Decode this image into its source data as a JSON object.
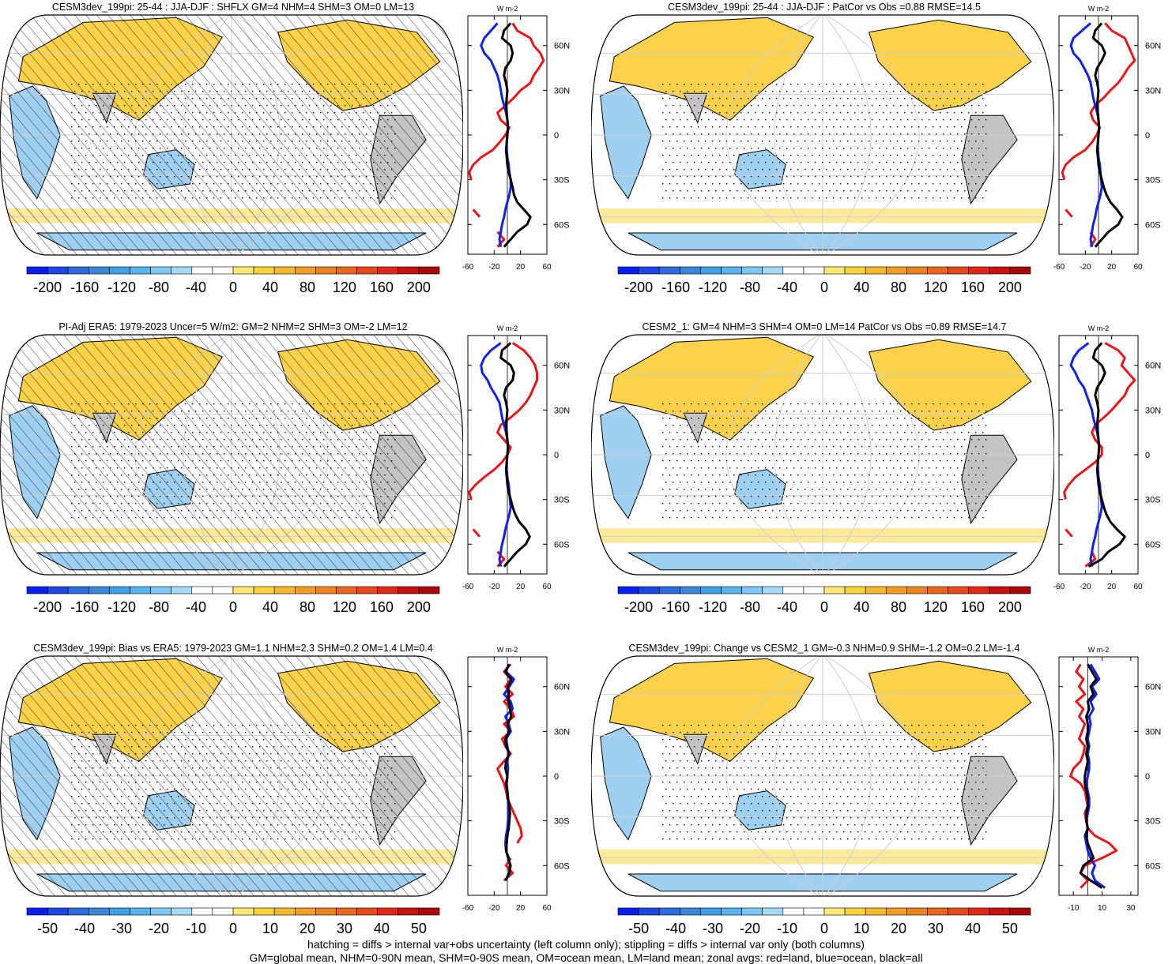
{
  "chart_data": [
    {
      "type": "map",
      "title": "CESM3dev_199pi: 25-44 : JJA-DJF : SHFLX GM=4 NHM=4 SHM=3 OM=0 LM=13",
      "colorbar_labels": [
        "-200",
        "-160",
        "-120",
        "-80",
        "-40",
        "0",
        "40",
        "80",
        "120",
        "160",
        "200"
      ],
      "colorbar_range": [
        -200,
        200
      ],
      "hatching": true,
      "profile": {
        "units": "W m-2",
        "x_ticks": [
          -60,
          -20,
          20,
          60
        ],
        "x_range": [
          -60,
          60
        ],
        "y_labels": [
          "60N",
          "30N",
          "0",
          "30S",
          "60S"
        ],
        "y_values": [
          60,
          30,
          0,
          -30,
          -60
        ],
        "lat": [
          75,
          70,
          65,
          60,
          55,
          50,
          45,
          40,
          35,
          30,
          25,
          20,
          15,
          10,
          5,
          0,
          -5,
          -10,
          -15,
          -20,
          -25,
          -30,
          -35,
          -40,
          -45,
          -50,
          -55,
          -60,
          -65,
          -70,
          -75
        ],
        "land": [
          8,
          15,
          35,
          40,
          50,
          55,
          48,
          40,
          35,
          20,
          10,
          -2,
          -15,
          -10,
          3,
          -3,
          -12,
          -22,
          -40,
          -52,
          -58,
          -55,
          null,
          null,
          null,
          -52,
          -42,
          null,
          -15,
          -5,
          -15
        ],
        "ocean": [
          -15,
          -25,
          -35,
          -40,
          -35,
          -25,
          -20,
          -15,
          -12,
          -10,
          -8,
          -5,
          -2,
          0,
          1,
          0,
          -1,
          -1,
          0,
          2,
          3,
          5,
          5,
          3,
          0,
          -3,
          -5,
          -8,
          -10,
          -12,
          -10
        ],
        "all": [
          5,
          -5,
          -8,
          5,
          8,
          5,
          -3,
          -5,
          -2,
          0,
          -1,
          -2,
          -1,
          0,
          1,
          0,
          -1,
          -2,
          -1,
          0,
          2,
          5,
          8,
          10,
          15,
          25,
          35,
          30,
          15,
          5,
          -5
        ]
      }
    },
    {
      "type": "map",
      "title": "CESM3dev_199pi: 25-44 : JJA-DJF : PatCor vs Obs =0.88 RMSE=14.5",
      "colorbar_labels": [
        "-200",
        "-160",
        "-120",
        "-80",
        "-40",
        "0",
        "40",
        "80",
        "120",
        "160",
        "200"
      ],
      "colorbar_range": [
        -200,
        200
      ],
      "hatching": false,
      "profile": {
        "units": "W m-2",
        "x_ticks": [
          -60,
          -20,
          20,
          60
        ],
        "x_range": [
          -60,
          60
        ],
        "y_labels": [
          "60N",
          "30N",
          "0",
          "30S",
          "60S"
        ],
        "y_values": [
          60,
          30,
          0,
          -30,
          -60
        ],
        "lat": [
          75,
          70,
          65,
          60,
          55,
          50,
          45,
          40,
          35,
          30,
          25,
          20,
          15,
          10,
          5,
          0,
          -5,
          -10,
          -15,
          -20,
          -25,
          -30,
          -35,
          -40,
          -45,
          -50,
          -55,
          -60,
          -65,
          -70,
          -75
        ],
        "land": [
          10,
          20,
          40,
          45,
          50,
          55,
          45,
          38,
          30,
          18,
          8,
          -5,
          -12,
          -8,
          2,
          -3,
          -10,
          -20,
          -38,
          -50,
          -55,
          -52,
          null,
          null,
          null,
          -50,
          -40,
          null,
          -12,
          -5,
          -12
        ],
        "ocean": [
          -12,
          -25,
          -38,
          -42,
          -38,
          -28,
          -22,
          -16,
          -12,
          -10,
          -8,
          -5,
          -2,
          0,
          1,
          0,
          -1,
          -1,
          0,
          2,
          3,
          4,
          5,
          3,
          0,
          -3,
          -5,
          -8,
          -10,
          -12,
          -10
        ],
        "all": [
          5,
          -5,
          -8,
          5,
          10,
          5,
          -2,
          -5,
          -2,
          0,
          -1,
          -2,
          -1,
          0,
          1,
          0,
          -1,
          -2,
          -1,
          0,
          2,
          5,
          8,
          12,
          18,
          28,
          36,
          30,
          15,
          5,
          -5
        ]
      }
    },
    {
      "type": "map",
      "title": "PI-Adj ERA5: 1979-2023 Uncer=5 W/m2: GM=2 NHM=2 SHM=3 OM=-2 LM=12",
      "colorbar_labels": [
        "-200",
        "-160",
        "-120",
        "-80",
        "-40",
        "0",
        "40",
        "80",
        "120",
        "160",
        "200"
      ],
      "colorbar_range": [
        -200,
        200
      ],
      "hatching": true,
      "profile": {
        "units": "W m-2",
        "x_ticks": [
          -60,
          -20,
          20,
          60
        ],
        "x_range": [
          -60,
          60
        ],
        "y_labels": [
          "60N",
          "30N",
          "0",
          "30S",
          "60S"
        ],
        "y_values": [
          60,
          30,
          0,
          -30,
          -60
        ],
        "lat": [
          75,
          70,
          65,
          60,
          55,
          50,
          45,
          40,
          35,
          30,
          25,
          20,
          15,
          10,
          5,
          0,
          -5,
          -10,
          -15,
          -20,
          -25,
          -30,
          -35,
          -40,
          -45,
          -50,
          -55,
          -60,
          -65,
          -70,
          -75
        ],
        "land": [
          8,
          25,
          35,
          42,
          45,
          45,
          40,
          35,
          28,
          18,
          5,
          -10,
          -15,
          -5,
          5,
          0,
          -8,
          -20,
          -35,
          -48,
          -58,
          -55,
          null,
          null,
          null,
          -52,
          -42,
          null,
          -15,
          -5,
          -15
        ],
        "ocean": [
          -10,
          -25,
          -35,
          -40,
          -38,
          -30,
          -25,
          -18,
          -12,
          -10,
          -8,
          -5,
          -2,
          0,
          1,
          0,
          -1,
          -1,
          0,
          2,
          3,
          4,
          5,
          3,
          0,
          -3,
          -5,
          -8,
          -10,
          -12,
          -10
        ],
        "all": [
          5,
          -8,
          -10,
          5,
          10,
          8,
          -2,
          -5,
          -2,
          0,
          -1,
          -2,
          -1,
          0,
          1,
          0,
          -1,
          -2,
          -1,
          0,
          2,
          5,
          8,
          12,
          18,
          28,
          34,
          28,
          15,
          5,
          -5
        ]
      }
    },
    {
      "type": "map",
      "title": "CESM2_1: GM=4 NHM=3 SHM=4 OM=0 LM=14 PatCor vs Obs =0.89 RMSE=14.7",
      "colorbar_labels": [
        "-200",
        "-160",
        "-120",
        "-80",
        "-40",
        "0",
        "40",
        "80",
        "120",
        "160",
        "200"
      ],
      "colorbar_range": [
        -200,
        200
      ],
      "hatching": false,
      "profile": {
        "units": "W m-2",
        "x_ticks": [
          -60,
          -20,
          20,
          60
        ],
        "x_range": [
          -60,
          60
        ],
        "y_labels": [
          "60N",
          "30N",
          "0",
          "30S",
          "60S"
        ],
        "y_values": [
          60,
          30,
          0,
          -30,
          -60
        ],
        "lat": [
          75,
          70,
          65,
          60,
          55,
          50,
          45,
          40,
          35,
          30,
          25,
          20,
          15,
          10,
          5,
          0,
          -5,
          -10,
          -15,
          -20,
          -25,
          -30,
          -35,
          -40,
          -45,
          -50,
          -55,
          -60,
          -65,
          -70,
          -75
        ],
        "land": [
          10,
          30,
          40,
          35,
          45,
          55,
          45,
          40,
          30,
          20,
          8,
          -5,
          -10,
          -5,
          5,
          5,
          -5,
          -20,
          -35,
          -45,
          -52,
          -50,
          null,
          null,
          null,
          -50,
          -40,
          null,
          -10,
          -5,
          -20
        ],
        "ocean": [
          -15,
          -30,
          -38,
          -42,
          -35,
          -30,
          -22,
          -18,
          -14,
          -10,
          -8,
          -5,
          -2,
          0,
          1,
          0,
          -1,
          -1,
          0,
          2,
          3,
          4,
          5,
          3,
          0,
          -3,
          -5,
          -8,
          -10,
          -12,
          -10
        ],
        "all": [
          5,
          -5,
          -8,
          5,
          10,
          5,
          -2,
          -5,
          -2,
          0,
          -1,
          -2,
          -1,
          0,
          1,
          0,
          -1,
          -2,
          -1,
          0,
          2,
          5,
          8,
          12,
          18,
          28,
          40,
          32,
          15,
          5,
          -15
        ]
      }
    },
    {
      "type": "map",
      "title": "CESM3dev_199pi: Bias vs ERA5: 1979-2023 GM=1.1 NHM=2.3 SHM=0.2 OM=1.4 LM=0.4",
      "colorbar_labels": [
        "-50",
        "-40",
        "-30",
        "-20",
        "-10",
        "0",
        "10",
        "20",
        "30",
        "40",
        "50"
      ],
      "colorbar_range": [
        -50,
        50
      ],
      "hatching": true,
      "profile": {
        "units": "W m-2",
        "x_ticks": [
          -60,
          -20,
          20,
          60
        ],
        "x_range": [
          -60,
          60
        ],
        "y_labels": [
          "60N",
          "30N",
          "0",
          "30S",
          "60S"
        ],
        "y_values": [
          60,
          30,
          0,
          -30,
          -60
        ],
        "lat": [
          75,
          70,
          65,
          60,
          55,
          50,
          45,
          40,
          35,
          30,
          25,
          20,
          15,
          10,
          5,
          0,
          -5,
          -10,
          -15,
          -20,
          -25,
          -30,
          -35,
          -40,
          -45,
          -50,
          -55,
          -60,
          -65,
          -70
        ],
        "land": [
          5,
          -5,
          5,
          -3,
          8,
          -5,
          5,
          10,
          -5,
          5,
          -8,
          -3,
          5,
          -5,
          -15,
          -10,
          -5,
          -2,
          0,
          5,
          10,
          15,
          20,
          22,
          15,
          null,
          5,
          -2,
          8,
          -5
        ],
        "ocean": [
          2,
          -2,
          10,
          3,
          -5,
          5,
          8,
          -3,
          2,
          5,
          -2,
          0,
          2,
          0,
          1,
          0,
          -1,
          0,
          1,
          2,
          2,
          1,
          0,
          -2,
          -3,
          -2,
          1,
          5,
          3,
          -2
        ],
        "all": [
          3,
          -3,
          6,
          1,
          2,
          2,
          4,
          6,
          0,
          3,
          -3,
          -2,
          3,
          -2,
          -3,
          0,
          -2,
          0,
          1,
          3,
          4,
          3,
          2,
          0,
          -1,
          -2,
          2,
          4,
          3,
          -3
        ]
      }
    },
    {
      "type": "map",
      "title": "CESM3dev_199pi: Change vs CESM2_1 GM=-0.3 NHM=0.9 SHM=-1.2 OM=0.2 LM=-1.4",
      "colorbar_labels": [
        "-50",
        "-40",
        "-30",
        "-20",
        "-10",
        "0",
        "10",
        "20",
        "30",
        "40",
        "50"
      ],
      "colorbar_range": [
        -50,
        50
      ],
      "hatching": false,
      "profile": {
        "units": "W m-2",
        "x_ticks": [
          -10,
          10,
          30
        ],
        "x_range": [
          -20,
          35
        ],
        "y_labels": [
          "60N",
          "30N",
          "0",
          "30S",
          "60S"
        ],
        "y_values": [
          60,
          30,
          0,
          -30,
          -60
        ],
        "lat": [
          75,
          70,
          65,
          60,
          55,
          50,
          45,
          40,
          35,
          30,
          25,
          20,
          15,
          10,
          5,
          0,
          -5,
          -10,
          -15,
          -20,
          -25,
          -30,
          -35,
          -40,
          -45,
          -50,
          -55,
          -60,
          -65,
          -70,
          -75
        ],
        "land": [
          -5,
          -8,
          -3,
          -6,
          -2,
          -8,
          -3,
          -6,
          -2,
          -4,
          -6,
          -2,
          -3,
          -5,
          -10,
          -12,
          -5,
          -2,
          -1,
          0,
          -2,
          -1,
          0,
          5,
          15,
          20,
          10,
          -2,
          -5,
          0,
          -5
        ],
        "ocean": [
          2,
          5,
          8,
          3,
          6,
          2,
          4,
          1,
          2,
          1,
          0,
          1,
          0,
          1,
          1,
          0,
          -1,
          0,
          1,
          1,
          0,
          -1,
          0,
          -2,
          -1,
          0,
          2,
          5,
          3,
          5,
          12
        ],
        "all": [
          0,
          3,
          6,
          2,
          4,
          0,
          1,
          -1,
          0,
          0,
          -1,
          0,
          -1,
          0,
          -1,
          -2,
          -2,
          -1,
          0,
          0,
          -1,
          -1,
          0,
          -1,
          0,
          2,
          4,
          -3,
          -5,
          2,
          10
        ]
      }
    }
  ],
  "footer": {
    "line1": "hatching = diffs > internal var+obs uncertainty (left column only); stippling = diffs > internal var only (both columns)",
    "line2": "GM=global mean, NHM=0-90N mean, SHM=0-90S mean, OM=ocean mean, LM=land mean; zonal avgs: red=land, blue=ocean, black=all"
  },
  "colors": {
    "land": "#e8161b",
    "ocean": "#1020ee",
    "all": "#000000",
    "continent_gray": "#c4c4c4",
    "ocean_blue": "#9fd0f2",
    "warm_yellow": "#fbd24a"
  },
  "colorbar_colors": [
    "#0a1ef0",
    "#1e46e6",
    "#2f6bdc",
    "#3a86d8",
    "#3fa0e4",
    "#58b4ee",
    "#7fc8f4",
    "#a6dbf8",
    "#ffffff",
    "#ffffff",
    "#fde877",
    "#f9d43a",
    "#f4b92f",
    "#f19d28",
    "#ec8422",
    "#e8661e",
    "#e44a1a",
    "#e02818",
    "#c81212",
    "#a80808"
  ]
}
